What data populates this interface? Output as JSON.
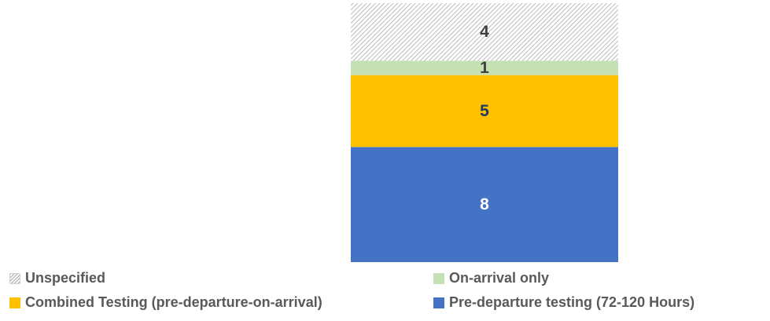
{
  "chart_data": {
    "type": "bar",
    "stacked": true,
    "categories": [
      ""
    ],
    "series": [
      {
        "name": "Pre-departure testing (72-120 Hours)",
        "values": [
          8
        ],
        "color": "#4472C4",
        "label_color": "#ffffff",
        "pattern": "solid"
      },
      {
        "name": "Combined Testing (pre-departure-on-arrival)",
        "values": [
          5
        ],
        "color": "#FFC000",
        "label_color": "#1F3864",
        "pattern": "solid"
      },
      {
        "name": "On-arrival only",
        "values": [
          1
        ],
        "color": "#C5E0B4",
        "label_color": "#404040",
        "pattern": "solid"
      },
      {
        "name": "Unspecified",
        "values": [
          4
        ],
        "color": "#A6A6A6",
        "label_color": "#404040",
        "pattern": "hatch"
      }
    ],
    "ylim": [
      0,
      18
    ],
    "axes_visible": false,
    "grid": false,
    "legend_position": "bottom",
    "title": "",
    "xlabel": "",
    "ylabel": ""
  },
  "legend": {
    "items": [
      {
        "label": "Unspecified",
        "series_index": 3
      },
      {
        "label": "On-arrival only",
        "series_index": 2
      },
      {
        "label": "Combined Testing (pre-departure-on-arrival)",
        "series_index": 1
      },
      {
        "label": "Pre-departure testing (72-120 Hours)",
        "series_index": 0
      }
    ]
  }
}
